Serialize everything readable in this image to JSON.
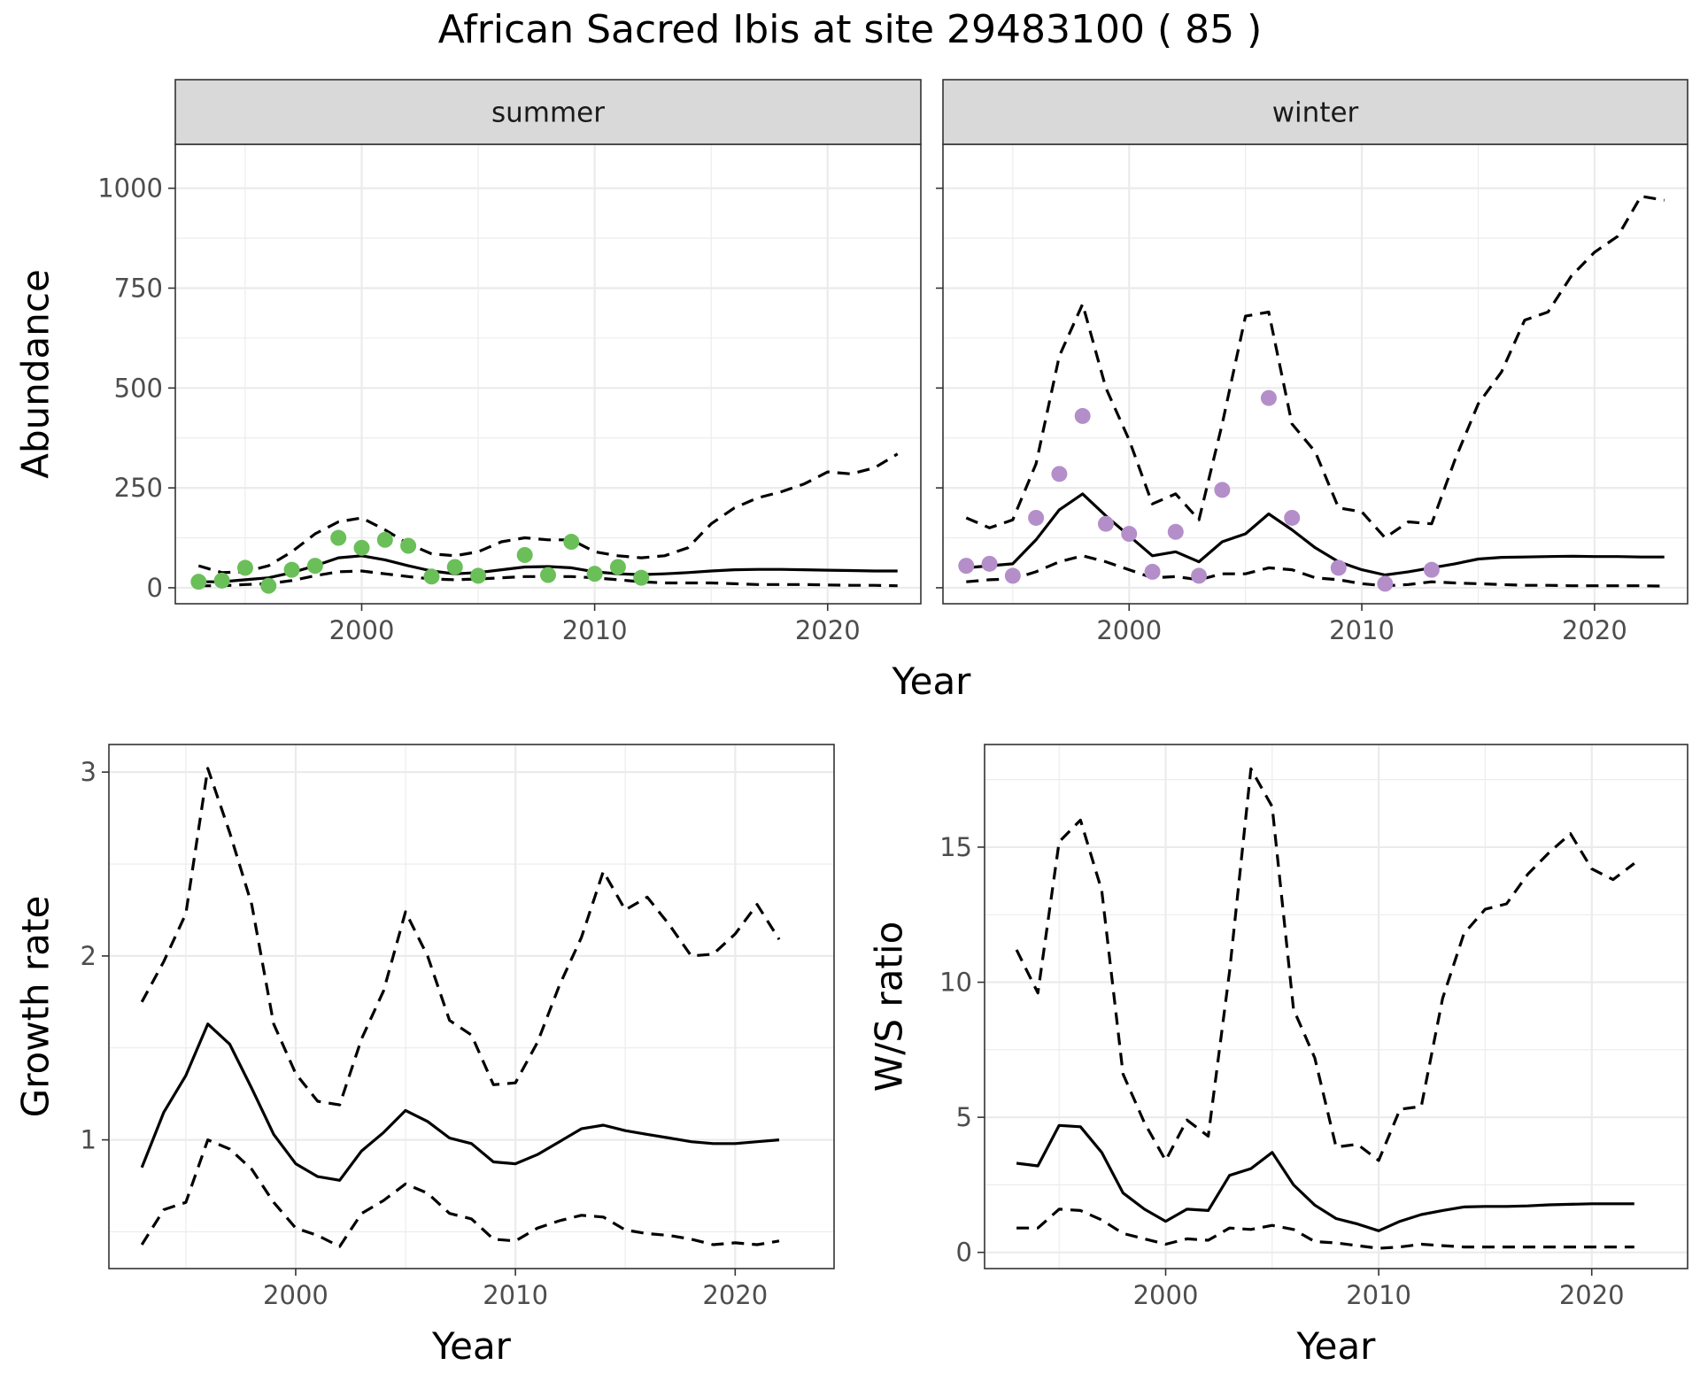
{
  "title": "African Sacred Ibis at site 29483100 ( 85 )",
  "chart_data": [
    {
      "type": "line",
      "facet": "summer",
      "xlabel": "Year",
      "ylabel": "Abundance",
      "xlim": [
        1992,
        2024
      ],
      "ylim": [
        -40,
        1110
      ],
      "x_ticks": [
        2000,
        2010,
        2020
      ],
      "y_ticks": [
        0,
        250,
        500,
        750,
        1000
      ],
      "point_color": "#6abf59",
      "x": [
        1993,
        1994,
        1995,
        1996,
        1997,
        1998,
        1999,
        2000,
        2001,
        2002,
        2003,
        2004,
        2005,
        2006,
        2007,
        2008,
        2009,
        2010,
        2011,
        2012,
        2013,
        2014,
        2015,
        2016,
        2017,
        2018,
        2019,
        2020,
        2021,
        2022,
        2023
      ],
      "series": [
        {
          "values": [
            15,
            15,
            20,
            25,
            38,
            55,
            75,
            80,
            70,
            55,
            42,
            35,
            38,
            45,
            52,
            53,
            50,
            40,
            35,
            33,
            35,
            38,
            42,
            45,
            46,
            46,
            45,
            44,
            43,
            42,
            42
          ]
        },
        {
          "values": [
            55,
            38,
            40,
            55,
            90,
            135,
            165,
            175,
            145,
            110,
            85,
            80,
            90,
            115,
            125,
            120,
            120,
            90,
            80,
            75,
            80,
            100,
            160,
            200,
            225,
            240,
            260,
            290,
            285,
            300,
            335
          ]
        },
        {
          "values": [
            5,
            5,
            8,
            10,
            18,
            30,
            40,
            42,
            35,
            28,
            22,
            20,
            22,
            25,
            28,
            28,
            28,
            25,
            20,
            15,
            12,
            12,
            12,
            10,
            8,
            8,
            8,
            7,
            6,
            6,
            5
          ]
        }
      ],
      "points": {
        "x": [
          1993,
          1994,
          1995,
          1996,
          1997,
          1998,
          1999,
          2000,
          2001,
          2002,
          2003,
          2004,
          2005,
          2007,
          2008,
          2009,
          2010,
          2011,
          2012
        ],
        "y": [
          15,
          18,
          50,
          5,
          45,
          55,
          125,
          100,
          120,
          105,
          28,
          52,
          30,
          82,
          32,
          115,
          35,
          52,
          25
        ]
      }
    },
    {
      "type": "line",
      "facet": "winter",
      "xlabel": "Year",
      "ylabel": "Abundance",
      "xlim": [
        1992,
        2024
      ],
      "ylim": [
        -40,
        1110
      ],
      "x_ticks": [
        2000,
        2010,
        2020
      ],
      "y_ticks": [
        0,
        250,
        500,
        750,
        1000
      ],
      "point_color": "#b48ec9",
      "x": [
        1993,
        1994,
        1995,
        1996,
        1997,
        1998,
        1999,
        2000,
        2001,
        2002,
        2003,
        2004,
        2005,
        2006,
        2007,
        2008,
        2009,
        2010,
        2011,
        2012,
        2013,
        2014,
        2015,
        2016,
        2017,
        2018,
        2019,
        2020,
        2021,
        2022,
        2023
      ],
      "series": [
        {
          "values": [
            50,
            55,
            60,
            120,
            195,
            235,
            180,
            130,
            80,
            90,
            65,
            115,
            135,
            185,
            145,
            100,
            65,
            45,
            32,
            40,
            50,
            60,
            72,
            76,
            77,
            78,
            79,
            78,
            78,
            77,
            77
          ]
        },
        {
          "values": [
            175,
            150,
            170,
            310,
            580,
            710,
            500,
            370,
            210,
            235,
            170,
            410,
            680,
            690,
            410,
            340,
            200,
            190,
            125,
            165,
            160,
            320,
            460,
            540,
            670,
            690,
            780,
            840,
            880,
            980,
            970
          ]
        },
        {
          "values": [
            15,
            20,
            22,
            40,
            65,
            80,
            65,
            45,
            25,
            28,
            20,
            35,
            35,
            50,
            45,
            25,
            20,
            10,
            5,
            8,
            15,
            12,
            10,
            8,
            6,
            6,
            5,
            5,
            5,
            5,
            4
          ]
        }
      ],
      "points": {
        "x": [
          1993,
          1994,
          1995,
          1996,
          1997,
          1998,
          1999,
          2000,
          2001,
          2002,
          2003,
          2004,
          2006,
          2007,
          2009,
          2011,
          2013
        ],
        "y": [
          55,
          60,
          30,
          175,
          285,
          430,
          160,
          135,
          40,
          140,
          30,
          245,
          475,
          175,
          50,
          10,
          45
        ]
      }
    },
    {
      "type": "line",
      "xlabel": "Year",
      "ylabel": "Growth rate",
      "xlim": [
        1991.5,
        2024.5
      ],
      "ylim": [
        0.3,
        3.15
      ],
      "x_ticks": [
        2000,
        2010,
        2020
      ],
      "y_ticks": [
        1,
        2,
        3
      ],
      "x": [
        1993,
        1994,
        1995,
        1996,
        1997,
        1998,
        1999,
        2000,
        2001,
        2002,
        2003,
        2004,
        2005,
        2006,
        2007,
        2008,
        2009,
        2010,
        2011,
        2012,
        2013,
        2014,
        2015,
        2016,
        2017,
        2018,
        2019,
        2020,
        2021,
        2022
      ],
      "series": [
        {
          "values": [
            0.85,
            1.15,
            1.35,
            1.63,
            1.52,
            1.28,
            1.03,
            0.87,
            0.8,
            0.78,
            0.94,
            1.04,
            1.16,
            1.1,
            1.01,
            0.98,
            0.88,
            0.87,
            0.92,
            0.99,
            1.06,
            1.08,
            1.05,
            1.03,
            1.01,
            0.99,
            0.98,
            0.98,
            0.99,
            1.0
          ]
        },
        {
          "values": [
            1.75,
            1.97,
            2.23,
            3.02,
            2.67,
            2.28,
            1.63,
            1.36,
            1.21,
            1.19,
            1.55,
            1.81,
            2.24,
            2.0,
            1.65,
            1.57,
            1.3,
            1.31,
            1.53,
            1.84,
            2.1,
            2.46,
            2.25,
            2.32,
            2.17,
            2.0,
            2.01,
            2.12,
            2.28,
            2.09
          ]
        },
        {
          "values": [
            0.43,
            0.62,
            0.66,
            1.0,
            0.95,
            0.84,
            0.66,
            0.52,
            0.48,
            0.42,
            0.6,
            0.67,
            0.76,
            0.71,
            0.6,
            0.57,
            0.46,
            0.45,
            0.52,
            0.56,
            0.59,
            0.58,
            0.51,
            0.49,
            0.48,
            0.46,
            0.43,
            0.44,
            0.43,
            0.45
          ]
        }
      ]
    },
    {
      "type": "line",
      "xlabel": "Year",
      "ylabel": "W/S ratio",
      "xlim": [
        1991.5,
        2024.5
      ],
      "ylim": [
        -0.6,
        18.8
      ],
      "x_ticks": [
        2000,
        2010,
        2020
      ],
      "y_ticks": [
        0,
        5,
        10,
        15
      ],
      "x": [
        1993,
        1994,
        1995,
        1996,
        1997,
        1998,
        1999,
        2000,
        2001,
        2002,
        2003,
        2004,
        2005,
        2006,
        2007,
        2008,
        2009,
        2010,
        2011,
        2012,
        2013,
        2014,
        2015,
        2016,
        2017,
        2018,
        2019,
        2020,
        2021,
        2022
      ],
      "series": [
        {
          "values": [
            3.3,
            3.2,
            4.7,
            4.65,
            3.7,
            2.2,
            1.6,
            1.15,
            1.6,
            1.55,
            2.85,
            3.1,
            3.7,
            2.5,
            1.75,
            1.25,
            1.05,
            0.8,
            1.15,
            1.4,
            1.55,
            1.68,
            1.7,
            1.7,
            1.72,
            1.76,
            1.78,
            1.8,
            1.8,
            1.8
          ]
        },
        {
          "values": [
            11.2,
            9.6,
            15.2,
            16.0,
            13.4,
            6.6,
            4.8,
            3.4,
            4.9,
            4.3,
            10.4,
            17.9,
            16.5,
            9.0,
            7.2,
            3.9,
            4.0,
            3.4,
            5.3,
            5.4,
            9.4,
            11.8,
            12.7,
            12.9,
            14.0,
            14.8,
            15.5,
            14.2,
            13.8,
            14.4
          ]
        },
        {
          "values": [
            0.9,
            0.9,
            1.6,
            1.55,
            1.2,
            0.7,
            0.5,
            0.3,
            0.5,
            0.45,
            0.9,
            0.85,
            1.0,
            0.85,
            0.4,
            0.35,
            0.25,
            0.15,
            0.2,
            0.3,
            0.25,
            0.2,
            0.2,
            0.2,
            0.2,
            0.2,
            0.2,
            0.2,
            0.2,
            0.2
          ]
        }
      ]
    }
  ]
}
